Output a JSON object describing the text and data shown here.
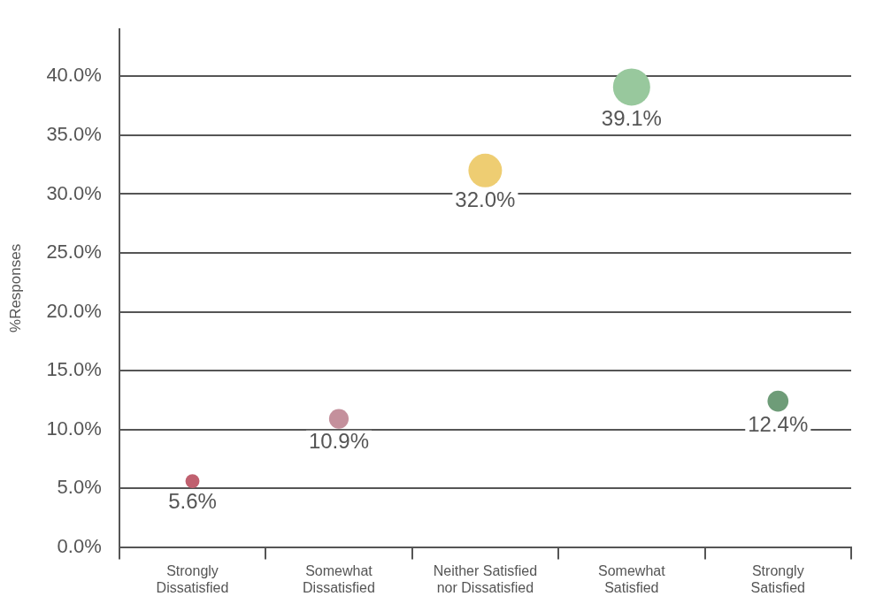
{
  "chart_data": {
    "type": "bubble",
    "ylabel": "%Responses",
    "categories": [
      "Strongly Dissatisfied",
      "Somewhat Dissatisfied",
      "Neither Satisfied nor Dissatisfied",
      "Somewhat Satisfied",
      "Strongly Satisfied"
    ],
    "values": [
      5.6,
      10.9,
      32.0,
      39.1,
      12.4
    ],
    "sizes": [
      0.143,
      0.279,
      0.818,
      1,
      0.317
    ],
    "colors": [
      "#c0606f",
      "#c4909c",
      "#eecd72",
      "#98c89d",
      "#6e9c78"
    ],
    "value_labels": [
      "5.6%",
      "10.9%",
      "32.0%",
      "39.1%",
      "12.4%"
    ],
    "ylim": [
      0,
      44
    ],
    "yticks": [
      {
        "value": 0,
        "label": "0.0%"
      },
      {
        "value": 5,
        "label": "5.0%"
      },
      {
        "value": 10,
        "label": "10.0%"
      },
      {
        "value": 15,
        "label": "15.0%"
      },
      {
        "value": 20,
        "label": "20.0%"
      },
      {
        "value": 25,
        "label": "25.0%"
      },
      {
        "value": 30,
        "label": "30.0%"
      },
      {
        "value": 35,
        "label": "35.0%"
      },
      {
        "value": 40,
        "label": "40.0%"
      }
    ],
    "grid": "y",
    "legend": false
  }
}
